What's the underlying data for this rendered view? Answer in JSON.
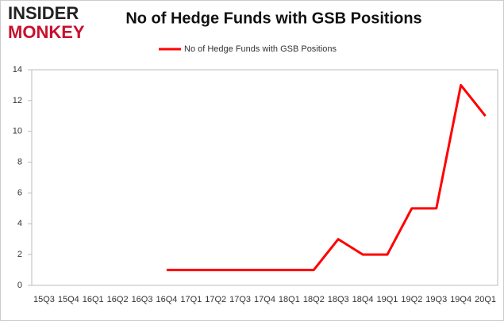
{
  "logo": {
    "line1": "INSIDER",
    "line2": "MONKEY"
  },
  "chart_data": {
    "type": "line",
    "title": "No of Hedge Funds with GSB Positions",
    "categories": [
      "15Q3",
      "15Q4",
      "16Q1",
      "16Q2",
      "16Q3",
      "16Q4",
      "17Q1",
      "17Q2",
      "17Q3",
      "17Q4",
      "18Q1",
      "18Q2",
      "18Q3",
      "18Q4",
      "19Q1",
      "19Q2",
      "19Q3",
      "19Q4",
      "20Q1"
    ],
    "series": [
      {
        "name": "No of Hedge Funds with GSB Positions",
        "color": "#ff0000",
        "values": [
          null,
          null,
          null,
          null,
          null,
          1,
          1,
          1,
          1,
          1,
          1,
          1,
          3,
          2,
          2,
          5,
          5,
          13,
          11
        ]
      }
    ],
    "ylim": [
      0,
      14
    ],
    "yticks": [
      0,
      2,
      4,
      6,
      8,
      10,
      12,
      14
    ],
    "grid": false,
    "legend": "top"
  }
}
